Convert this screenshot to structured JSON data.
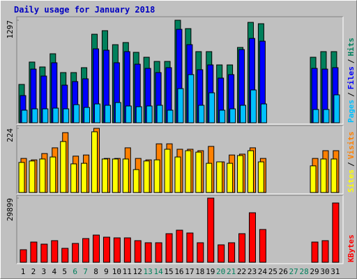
{
  "title": "Daily usage for January 2018",
  "categories": [
    "1",
    "2",
    "3",
    "4",
    "5",
    "6",
    "7",
    "8",
    "9",
    "10",
    "11",
    "12",
    "13",
    "14",
    "15",
    "16",
    "17",
    "18",
    "19",
    "20",
    "21",
    "22",
    "23",
    "24",
    "25",
    "26",
    "27",
    "28",
    "29",
    "30",
    "31"
  ],
  "category_colors": [
    "#000000",
    "#000000",
    "#000000",
    "#000000",
    "#000000",
    "#00805c",
    "#00805c",
    "#000000",
    "#000000",
    "#000000",
    "#000000",
    "#000000",
    "#00805c",
    "#00805c",
    "#000000",
    "#000000",
    "#000000",
    "#000000",
    "#000000",
    "#00805c",
    "#00805c",
    "#000000",
    "#000000",
    "#000000",
    "#000000",
    "#000000",
    "#00805c",
    "#00805c",
    "#000000",
    "#000000",
    "#000000"
  ],
  "legend_separator": "/",
  "chart_data": [
    {
      "type": "bar",
      "ylim": [
        0,
        1297
      ],
      "yticks": [
        1297
      ],
      "series": [
        {
          "name": "Pages",
          "color": "#00c0ff",
          "values": [
            159,
            176,
            176,
            185,
            176,
            229,
            194,
            238,
            221,
            256,
            212,
            203,
            212,
            221,
            159,
            432,
            609,
            221,
            379,
            159,
            176,
            221,
            415,
            238,
            0,
            0,
            0,
            0,
            168,
            168,
            353
          ]
        },
        {
          "name": "Files",
          "color": "#0000ff",
          "values": [
            344,
            679,
            591,
            759,
            476,
            521,
            556,
            935,
            918,
            759,
            900,
            741,
            688,
            635,
            697,
            1182,
            988,
            671,
            732,
            565,
            609,
            926,
            1067,
            1032,
            0,
            0,
            0,
            0,
            688,
            679,
            697
          ]
        },
        {
          "name": "Hits",
          "color": "#00805c",
          "values": [
            485,
            768,
            706,
            873,
            635,
            635,
            697,
            1120,
            1165,
            988,
            1015,
            891,
            829,
            776,
            776,
            1297,
            1191,
            900,
            900,
            732,
            732,
            953,
            1270,
            1253,
            0,
            0,
            0,
            0,
            829,
            900,
            900
          ]
        }
      ]
    },
    {
      "type": "bar",
      "ylim": [
        0,
        224
      ],
      "yticks": [
        224
      ],
      "series": [
        {
          "name": "Sites",
          "color": "#ffff00",
          "values": [
            105,
            110,
            117,
            124,
            178,
            100,
            102,
            212,
            117,
            117,
            117,
            80,
            110,
            114,
            151,
            124,
            146,
            141,
            102,
            107,
            102,
            129,
            146,
            107,
            0,
            0,
            0,
            0,
            93,
            117,
            117
          ]
        },
        {
          "name": "Visits",
          "color": "#ff8000",
          "values": [
            119,
            114,
            136,
            156,
            209,
            127,
            131,
            224,
            119,
            119,
            156,
            119,
            114,
            170,
            170,
            151,
            151,
            146,
            161,
            107,
            131,
            134,
            156,
            119,
            0,
            0,
            0,
            0,
            119,
            146,
            146
          ]
        }
      ]
    },
    {
      "type": "bar",
      "ylim": [
        0,
        29899
      ],
      "yticks": [
        29899
      ],
      "series": [
        {
          "name": "KBytes",
          "color": "#ff0000",
          "values": [
            5850,
            9425,
            8450,
            10075,
            6500,
            8775,
            11050,
            12675,
            11700,
            11375,
            11375,
            10075,
            9100,
            9100,
            13325,
            14950,
            13650,
            9100,
            29899,
            8125,
            9100,
            13325,
            23074,
            15275,
            0,
            0,
            0,
            0,
            9425,
            10075,
            27623
          ]
        }
      ]
    }
  ]
}
